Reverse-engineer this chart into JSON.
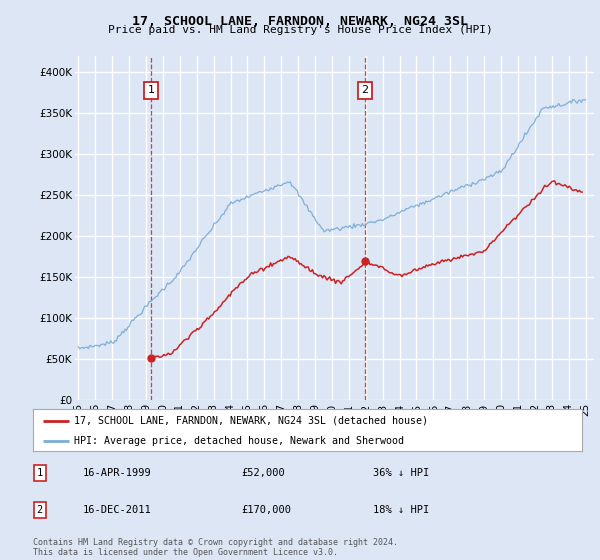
{
  "title": "17, SCHOOL LANE, FARNDON, NEWARK, NG24 3SL",
  "subtitle": "Price paid vs. HM Land Registry's House Price Index (HPI)",
  "bg_color": "#dce6f5",
  "plot_bg_color": "#dce6f5",
  "hpi_color": "#7aadd4",
  "price_color": "#cc2222",
  "vline_color": "#cc2222",
  "ylim": [
    0,
    420000
  ],
  "yticks": [
    0,
    50000,
    100000,
    150000,
    200000,
    250000,
    300000,
    350000,
    400000
  ],
  "ytick_labels": [
    "£0",
    "£50K",
    "£100K",
    "£150K",
    "£200K",
    "£250K",
    "£300K",
    "£350K",
    "£400K"
  ],
  "legend_label_price": "17, SCHOOL LANE, FARNDON, NEWARK, NG24 3SL (detached house)",
  "legend_label_hpi": "HPI: Average price, detached house, Newark and Sherwood",
  "annotation1_date": "16-APR-1999",
  "annotation1_price": "£52,000",
  "annotation1_pct": "36% ↓ HPI",
  "annotation2_date": "16-DEC-2011",
  "annotation2_price": "£170,000",
  "annotation2_pct": "18% ↓ HPI",
  "vline1_x": 1999.29,
  "vline2_x": 2011.96,
  "marker1_x": 1999.29,
  "marker1_y": 52000,
  "marker2_x": 2011.96,
  "marker2_y": 170000,
  "footer": "Contains HM Land Registry data © Crown copyright and database right 2024.\nThis data is licensed under the Open Government Licence v3.0.",
  "xlim_left": 1994.8,
  "xlim_right": 2025.5
}
